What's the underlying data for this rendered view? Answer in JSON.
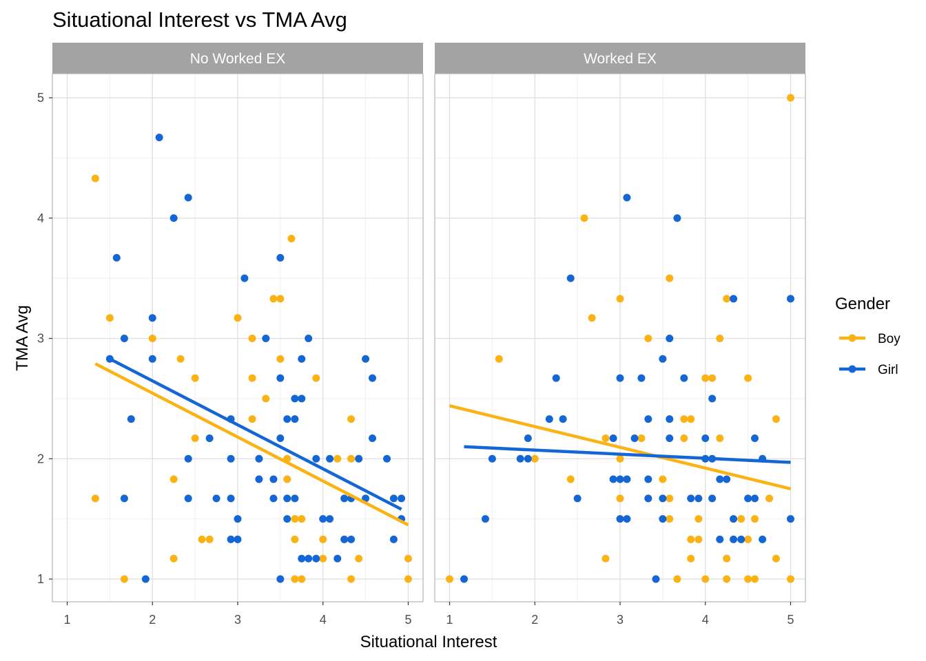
{
  "chart_data": {
    "type": "scatter",
    "title": "Situational Interest vs TMA Avg",
    "xlabel": "Situational Interest",
    "ylabel": "TMA Avg",
    "xlim": [
      0.8,
      5.2
    ],
    "ylim": [
      0.8,
      5.2
    ],
    "x_ticks": [
      1,
      2,
      3,
      4,
      5
    ],
    "y_ticks": [
      1,
      2,
      3,
      4,
      5
    ],
    "grid": true,
    "legend": {
      "title": "Gender",
      "position": "right",
      "entries": [
        {
          "name": "Boy",
          "color": "#FBB215"
        },
        {
          "name": "Girl",
          "color": "#1466D4"
        }
      ]
    },
    "panels": [
      {
        "label": "No Worked EX",
        "series": [
          {
            "name": "Boy",
            "color": "#FBB215",
            "points": [
              [
                1.33,
                4.33
              ],
              [
                1.33,
                1.67
              ],
              [
                1.5,
                3.17
              ],
              [
                1.67,
                1.0
              ],
              [
                2.0,
                3.0
              ],
              [
                2.25,
                1.83
              ],
              [
                2.25,
                1.17
              ],
              [
                2.33,
                2.83
              ],
              [
                2.5,
                2.67
              ],
              [
                2.5,
                2.17
              ],
              [
                2.58,
                1.33
              ],
              [
                2.67,
                1.33
              ],
              [
                3.0,
                3.17
              ],
              [
                3.17,
                3.0
              ],
              [
                3.17,
                2.67
              ],
              [
                3.17,
                2.33
              ],
              [
                3.25,
                2.0
              ],
              [
                3.33,
                2.5
              ],
              [
                3.42,
                3.33
              ],
              [
                3.5,
                3.33
              ],
              [
                3.5,
                2.83
              ],
              [
                3.58,
                2.0
              ],
              [
                3.58,
                1.83
              ],
              [
                3.63,
                3.83
              ],
              [
                3.67,
                1.5
              ],
              [
                3.67,
                1.33
              ],
              [
                3.67,
                1.0
              ],
              [
                3.75,
                1.5
              ],
              [
                3.75,
                1.0
              ],
              [
                3.92,
                2.67
              ],
              [
                4.0,
                1.33
              ],
              [
                4.0,
                1.17
              ],
              [
                4.17,
                2.0
              ],
              [
                4.33,
                2.33
              ],
              [
                4.33,
                2.0
              ],
              [
                4.33,
                1.0
              ],
              [
                4.42,
                2.0
              ],
              [
                4.42,
                1.17
              ],
              [
                5.0,
                1.17
              ],
              [
                5.0,
                1.0
              ]
            ],
            "fit": {
              "x": [
                1.33,
                5.0
              ],
              "y": [
                2.79,
                1.45
              ]
            }
          },
          {
            "name": "Girl",
            "color": "#1466D4",
            "points": [
              [
                1.5,
                2.83
              ],
              [
                1.58,
                3.67
              ],
              [
                1.67,
                3.0
              ],
              [
                1.67,
                1.67
              ],
              [
                1.75,
                2.33
              ],
              [
                1.92,
                1.0
              ],
              [
                2.0,
                3.17
              ],
              [
                2.0,
                2.83
              ],
              [
                2.08,
                4.67
              ],
              [
                2.25,
                4.0
              ],
              [
                2.42,
                4.17
              ],
              [
                2.42,
                2.0
              ],
              [
                2.42,
                1.67
              ],
              [
                2.67,
                2.17
              ],
              [
                2.75,
                1.67
              ],
              [
                2.92,
                2.33
              ],
              [
                2.92,
                2.0
              ],
              [
                2.92,
                1.67
              ],
              [
                2.92,
                1.33
              ],
              [
                3.0,
                1.5
              ],
              [
                3.0,
                1.33
              ],
              [
                3.08,
                3.5
              ],
              [
                3.25,
                1.83
              ],
              [
                3.25,
                2.0
              ],
              [
                3.33,
                3.0
              ],
              [
                3.42,
                1.83
              ],
              [
                3.42,
                1.67
              ],
              [
                3.5,
                3.67
              ],
              [
                3.5,
                2.67
              ],
              [
                3.5,
                2.17
              ],
              [
                3.5,
                1.0
              ],
              [
                3.58,
                2.33
              ],
              [
                3.58,
                1.67
              ],
              [
                3.58,
                1.5
              ],
              [
                3.67,
                2.5
              ],
              [
                3.67,
                2.33
              ],
              [
                3.67,
                1.67
              ],
              [
                3.75,
                2.83
              ],
              [
                3.75,
                2.5
              ],
              [
                3.75,
                1.17
              ],
              [
                3.83,
                3.0
              ],
              [
                3.83,
                1.17
              ],
              [
                3.92,
                2.0
              ],
              [
                3.92,
                1.17
              ],
              [
                4.0,
                1.5
              ],
              [
                4.08,
                2.0
              ],
              [
                4.08,
                1.5
              ],
              [
                4.17,
                1.17
              ],
              [
                4.25,
                1.67
              ],
              [
                4.25,
                1.33
              ],
              [
                4.33,
                1.33
              ],
              [
                4.33,
                1.67
              ],
              [
                4.42,
                2.0
              ],
              [
                4.5,
                2.83
              ],
              [
                4.5,
                1.67
              ],
              [
                4.58,
                2.67
              ],
              [
                4.58,
                2.17
              ],
              [
                4.75,
                2.0
              ],
              [
                4.83,
                1.67
              ],
              [
                4.83,
                1.33
              ],
              [
                4.92,
                1.67
              ],
              [
                4.92,
                1.5
              ]
            ],
            "fit": {
              "x": [
                1.5,
                4.92
              ],
              "y": [
                2.83,
                1.58
              ]
            }
          }
        ]
      },
      {
        "label": "Worked EX",
        "series": [
          {
            "name": "Boy",
            "color": "#FBB215",
            "points": [
              [
                1.0,
                1.0
              ],
              [
                1.58,
                2.83
              ],
              [
                2.0,
                2.0
              ],
              [
                2.42,
                1.83
              ],
              [
                2.58,
                4.0
              ],
              [
                2.67,
                3.17
              ],
              [
                2.83,
                2.17
              ],
              [
                2.83,
                1.17
              ],
              [
                3.0,
                3.33
              ],
              [
                3.0,
                2.0
              ],
              [
                3.0,
                1.67
              ],
              [
                3.25,
                2.17
              ],
              [
                3.33,
                3.0
              ],
              [
                3.33,
                1.67
              ],
              [
                3.5,
                1.83
              ],
              [
                3.58,
                3.5
              ],
              [
                3.58,
                1.67
              ],
              [
                3.58,
                1.5
              ],
              [
                3.67,
                1.0
              ],
              [
                3.75,
                2.33
              ],
              [
                3.75,
                2.17
              ],
              [
                3.83,
                2.33
              ],
              [
                3.83,
                1.33
              ],
              [
                3.83,
                1.17
              ],
              [
                3.92,
                1.5
              ],
              [
                3.92,
                1.33
              ],
              [
                4.0,
                2.67
              ],
              [
                4.0,
                1.0
              ],
              [
                4.08,
                2.67
              ],
              [
                4.17,
                3.0
              ],
              [
                4.17,
                2.17
              ],
              [
                4.25,
                3.33
              ],
              [
                4.25,
                1.17
              ],
              [
                4.25,
                1.0
              ],
              [
                4.42,
                1.5
              ],
              [
                4.5,
                2.67
              ],
              [
                4.5,
                1.33
              ],
              [
                4.5,
                1.0
              ],
              [
                4.58,
                1.5
              ],
              [
                4.58,
                1.0
              ],
              [
                4.75,
                1.67
              ],
              [
                4.83,
                2.33
              ],
              [
                4.83,
                1.17
              ],
              [
                5.0,
                5.0
              ],
              [
                5.0,
                1.0
              ]
            ],
            "fit": {
              "x": [
                1.0,
                5.0
              ],
              "y": [
                2.44,
                1.75
              ]
            }
          },
          {
            "name": "Girl",
            "color": "#1466D4",
            "points": [
              [
                1.17,
                1.0
              ],
              [
                1.42,
                1.5
              ],
              [
                1.5,
                2.0
              ],
              [
                1.83,
                2.0
              ],
              [
                1.92,
                2.0
              ],
              [
                1.92,
                2.17
              ],
              [
                2.17,
                2.33
              ],
              [
                2.25,
                2.67
              ],
              [
                2.33,
                2.33
              ],
              [
                2.42,
                3.5
              ],
              [
                2.5,
                1.67
              ],
              [
                2.92,
                2.17
              ],
              [
                2.92,
                1.83
              ],
              [
                3.0,
                2.67
              ],
              [
                3.0,
                1.83
              ],
              [
                3.0,
                1.5
              ],
              [
                3.08,
                4.17
              ],
              [
                3.08,
                1.83
              ],
              [
                3.08,
                1.5
              ],
              [
                3.17,
                2.17
              ],
              [
                3.25,
                2.67
              ],
              [
                3.33,
                2.33
              ],
              [
                3.33,
                1.83
              ],
              [
                3.33,
                1.67
              ],
              [
                3.42,
                1.0
              ],
              [
                3.5,
                2.83
              ],
              [
                3.5,
                1.67
              ],
              [
                3.5,
                1.5
              ],
              [
                3.58,
                3.0
              ],
              [
                3.58,
                2.33
              ],
              [
                3.58,
                2.17
              ],
              [
                3.67,
                4.0
              ],
              [
                3.75,
                2.67
              ],
              [
                3.83,
                1.67
              ],
              [
                3.92,
                1.67
              ],
              [
                4.0,
                2.17
              ],
              [
                4.0,
                2.0
              ],
              [
                4.08,
                2.5
              ],
              [
                4.08,
                2.0
              ],
              [
                4.08,
                1.67
              ],
              [
                4.17,
                1.83
              ],
              [
                4.17,
                1.33
              ],
              [
                4.25,
                1.83
              ],
              [
                4.33,
                3.33
              ],
              [
                4.33,
                1.5
              ],
              [
                4.33,
                1.33
              ],
              [
                4.42,
                1.33
              ],
              [
                4.5,
                1.67
              ],
              [
                4.58,
                2.17
              ],
              [
                4.58,
                1.67
              ],
              [
                4.67,
                2.0
              ],
              [
                4.67,
                1.33
              ],
              [
                5.0,
                3.33
              ],
              [
                5.0,
                1.5
              ]
            ],
            "fit": {
              "x": [
                1.17,
                5.0
              ],
              "y": [
                2.1,
                1.97
              ]
            }
          }
        ]
      }
    ]
  }
}
